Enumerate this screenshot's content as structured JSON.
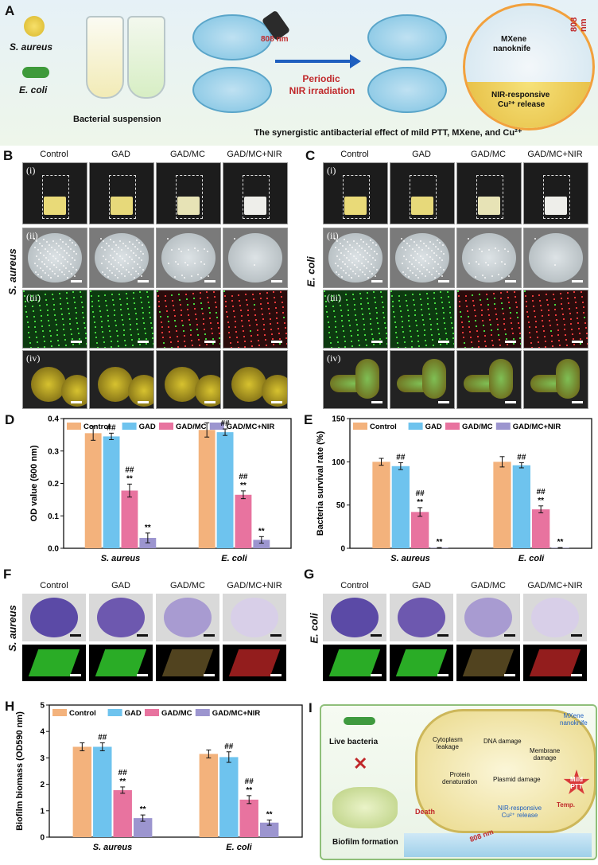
{
  "panelA": {
    "letter": "A",
    "s_aureus": "S. aureus",
    "e_coli": "E. coli",
    "bacterial_suspension": "Bacterial suspension",
    "laser_808_left": "808 nm",
    "periodic": "Periodic",
    "nir_irradiation": "NIR irradiation",
    "mxene": "MXene",
    "nanoknife": "nanoknife",
    "laser_808_right": "808 nm",
    "nir_responsive": "NIR-responsive",
    "cu_release": "Cu²⁺ release",
    "caption": "The synergistic antibacterial effect of mild PTT, MXene, and Cu²⁺"
  },
  "groups": [
    "Control",
    "GAD",
    "GAD/MC",
    "GAD/MC+NIR"
  ],
  "panelB": {
    "letter": "B",
    "row_label": "S. aureus",
    "romans": [
      "(i)",
      "(ii)",
      "(iii)",
      "(iv)"
    ]
  },
  "panelC": {
    "letter": "C",
    "row_label": "E. coli",
    "romans": [
      "(i)",
      "(ii)",
      "(iii)",
      "(iv)"
    ]
  },
  "panelF": {
    "letter": "F",
    "row_label": "S. aureus"
  },
  "panelG": {
    "letter": "G",
    "row_label": "E. coli"
  },
  "panelI": {
    "letter": "I",
    "live_bacteria": "Live bacteria",
    "biofilm_formation": "Biofilm formation",
    "cytoplasm": "Cytoplasm",
    "leakage": "leakage",
    "dna_damage": "DNA damage",
    "membrane": "Membrane",
    "damage": "damage",
    "protein": "Protein",
    "denaturation": "denaturation",
    "plasmid_damage": "Plasmid damage",
    "death": "Death",
    "mxene": "MXene",
    "nanoknife": "nanoknife",
    "mild": "Mild",
    "ptt": "PTT",
    "temp": "Temp.",
    "nir_responsive": "NIR-responsive",
    "cu_release": "Cu²⁺ release",
    "laser": "808 nm"
  },
  "colors": {
    "Control": "#f3b27c",
    "GAD": "#6ec3ee",
    "GAD/MC": "#e8739f",
    "GAD/MC+NIR": "#9c95cf"
  },
  "chart_data": [
    {
      "id": "D",
      "letter": "D",
      "type": "bar",
      "categories": [
        "S. aureus",
        "E. coli"
      ],
      "ylabel": "OD value (600 nm)",
      "ylim": [
        0,
        0.4
      ],
      "yticks": [
        "0.0",
        "0.1",
        "0.2",
        "0.3",
        "0.4"
      ],
      "series": [
        {
          "name": "Control",
          "values": [
            0.355,
            0.365
          ],
          "errors": [
            0.022,
            0.022
          ],
          "marks": [
            "",
            ""
          ]
        },
        {
          "name": "GAD",
          "values": [
            0.345,
            0.358
          ],
          "errors": [
            0.01,
            0.01
          ],
          "marks": [
            "##",
            "##"
          ]
        },
        {
          "name": "GAD/MC",
          "values": [
            0.178,
            0.165
          ],
          "errors": [
            0.02,
            0.012
          ],
          "marks": [
            "##\n**",
            "##\n**"
          ]
        },
        {
          "name": "GAD/MC+NIR",
          "values": [
            0.032,
            0.026
          ],
          "errors": [
            0.015,
            0.01
          ],
          "marks": [
            "**",
            "**"
          ]
        }
      ]
    },
    {
      "id": "E",
      "letter": "E",
      "type": "bar",
      "categories": [
        "S. aureus",
        "E. coli"
      ],
      "ylabel": "Bacteria survival rate (%)",
      "ylim": [
        0,
        150
      ],
      "yticks": [
        "0",
        "50",
        "100",
        "150"
      ],
      "series": [
        {
          "name": "Control",
          "values": [
            100,
            100
          ],
          "errors": [
            4,
            6
          ],
          "marks": [
            "",
            ""
          ]
        },
        {
          "name": "GAD",
          "values": [
            95,
            96
          ],
          "errors": [
            4,
            3
          ],
          "marks": [
            "##",
            "##"
          ]
        },
        {
          "name": "GAD/MC",
          "values": [
            42,
            45
          ],
          "errors": [
            5,
            4
          ],
          "marks": [
            "##\n**",
            "##\n**"
          ]
        },
        {
          "name": "GAD/MC+NIR",
          "values": [
            0.5,
            0.5
          ],
          "errors": [
            0.3,
            0.3
          ],
          "marks": [
            "**",
            "**"
          ]
        }
      ]
    },
    {
      "id": "H",
      "letter": "H",
      "type": "bar",
      "categories": [
        "S. aureus",
        "E. coli"
      ],
      "ylabel": "Biofilm biomass (OD590 nm)",
      "ylim": [
        0,
        5
      ],
      "yticks": [
        "0",
        "1",
        "2",
        "3",
        "4",
        "5"
      ],
      "series": [
        {
          "name": "Control",
          "values": [
            3.42,
            3.15
          ],
          "errors": [
            0.15,
            0.15
          ],
          "marks": [
            "",
            ""
          ]
        },
        {
          "name": "GAD",
          "values": [
            3.42,
            3.03
          ],
          "errors": [
            0.15,
            0.2
          ],
          "marks": [
            "##",
            "##"
          ]
        },
        {
          "name": "GAD/MC",
          "values": [
            1.78,
            1.42
          ],
          "errors": [
            0.12,
            0.15
          ],
          "marks": [
            "##\n**",
            "##\n**"
          ]
        },
        {
          "name": "GAD/MC+NIR",
          "values": [
            0.72,
            0.55
          ],
          "errors": [
            0.12,
            0.1
          ],
          "marks": [
            "**",
            "**"
          ]
        }
      ]
    }
  ]
}
